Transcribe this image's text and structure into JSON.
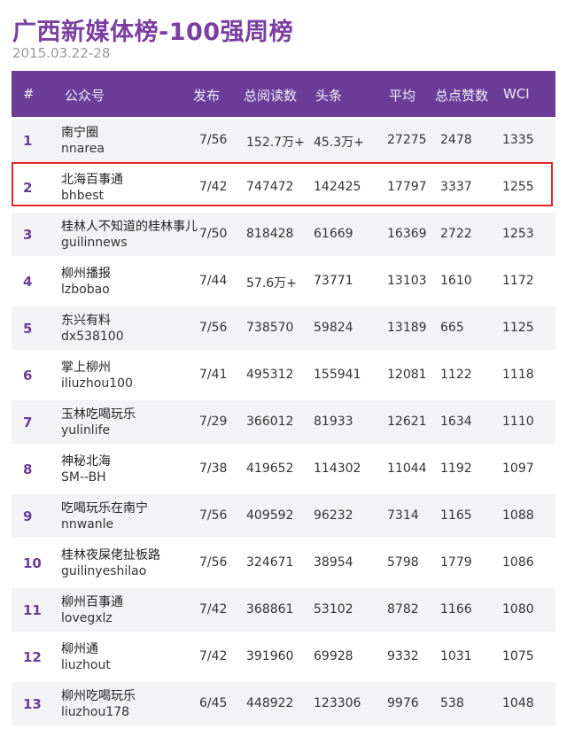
{
  "title": "广西新媒体榜-100强周榜",
  "date_range": "2015.03.22-28",
  "columns": {
    "rank": "#",
    "account": "公众号",
    "posts": "发布",
    "total_reads": "总阅读数",
    "headline": "头条",
    "average": "平均",
    "likes": "总点赞数",
    "wci": "WCI"
  },
  "rows": [
    {
      "rank": "1",
      "name": "南宁圈",
      "id": "nnarea",
      "posts": "7/56",
      "total_reads": "152.7万+",
      "headline": "45.3万+",
      "average": "27275",
      "likes": "2478",
      "wci": "1335"
    },
    {
      "rank": "2",
      "name": "北海百事通",
      "id": "bhbest",
      "posts": "7/42",
      "total_reads": "747472",
      "headline": "142425",
      "average": "17797",
      "likes": "3337",
      "wci": "1255"
    },
    {
      "rank": "3",
      "name": "桂林人不知道的桂林事儿",
      "id": "guilinnews",
      "posts": "7/50",
      "total_reads": "818428",
      "headline": "61669",
      "average": "16369",
      "likes": "2722",
      "wci": "1253"
    },
    {
      "rank": "4",
      "name": "柳州播报",
      "id": "lzbobao",
      "posts": "7/44",
      "total_reads": "57.6万+",
      "headline": "73771",
      "average": "13103",
      "likes": "1610",
      "wci": "1172"
    },
    {
      "rank": "5",
      "name": "东兴有料",
      "id": "dx538100",
      "posts": "7/56",
      "total_reads": "738570",
      "headline": "59824",
      "average": "13189",
      "likes": "665",
      "wci": "1125"
    },
    {
      "rank": "6",
      "name": "掌上柳州",
      "id": "iliuzhou100",
      "posts": "7/41",
      "total_reads": "495312",
      "headline": "155941",
      "average": "12081",
      "likes": "1122",
      "wci": "1118"
    },
    {
      "rank": "7",
      "name": "玉林吃喝玩乐",
      "id": "yulinlife",
      "posts": "7/29",
      "total_reads": "366012",
      "headline": "81933",
      "average": "12621",
      "likes": "1634",
      "wci": "1110"
    },
    {
      "rank": "8",
      "name": "神秘北海",
      "id": "SM--BH",
      "posts": "7/38",
      "total_reads": "419652",
      "headline": "114302",
      "average": "11044",
      "likes": "1192",
      "wci": "1097"
    },
    {
      "rank": "9",
      "name": "吃喝玩乐在南宁",
      "id": "nnwanle",
      "posts": "7/56",
      "total_reads": "409592",
      "headline": "96232",
      "average": "7314",
      "likes": "1165",
      "wci": "1088"
    },
    {
      "rank": "10",
      "name": "桂林夜屎佬扯板路",
      "id": "guilinyeshilao",
      "posts": "7/56",
      "total_reads": "324671",
      "headline": "38954",
      "average": "5798",
      "likes": "1779",
      "wci": "1086"
    },
    {
      "rank": "11",
      "name": "柳州百事通",
      "id": "lovegxlz",
      "posts": "7/42",
      "total_reads": "368861",
      "headline": "53102",
      "average": "8782",
      "likes": "1166",
      "wci": "1080"
    },
    {
      "rank": "12",
      "name": "柳州通",
      "id": "liuzhout",
      "posts": "7/42",
      "total_reads": "391960",
      "headline": "69928",
      "average": "9332",
      "likes": "1031",
      "wci": "1075"
    },
    {
      "rank": "13",
      "name": "柳州吃喝玩乐",
      "id": "liuzhou178",
      "posts": "6/45",
      "total_reads": "448922",
      "headline": "123306",
      "average": "9976",
      "likes": "538",
      "wci": "1048"
    }
  ],
  "colors": {
    "accent": "#6c3d98",
    "title": "#7a3fa0",
    "highlight_border": "#e0262b",
    "row_alt": "#f3f3f5"
  }
}
